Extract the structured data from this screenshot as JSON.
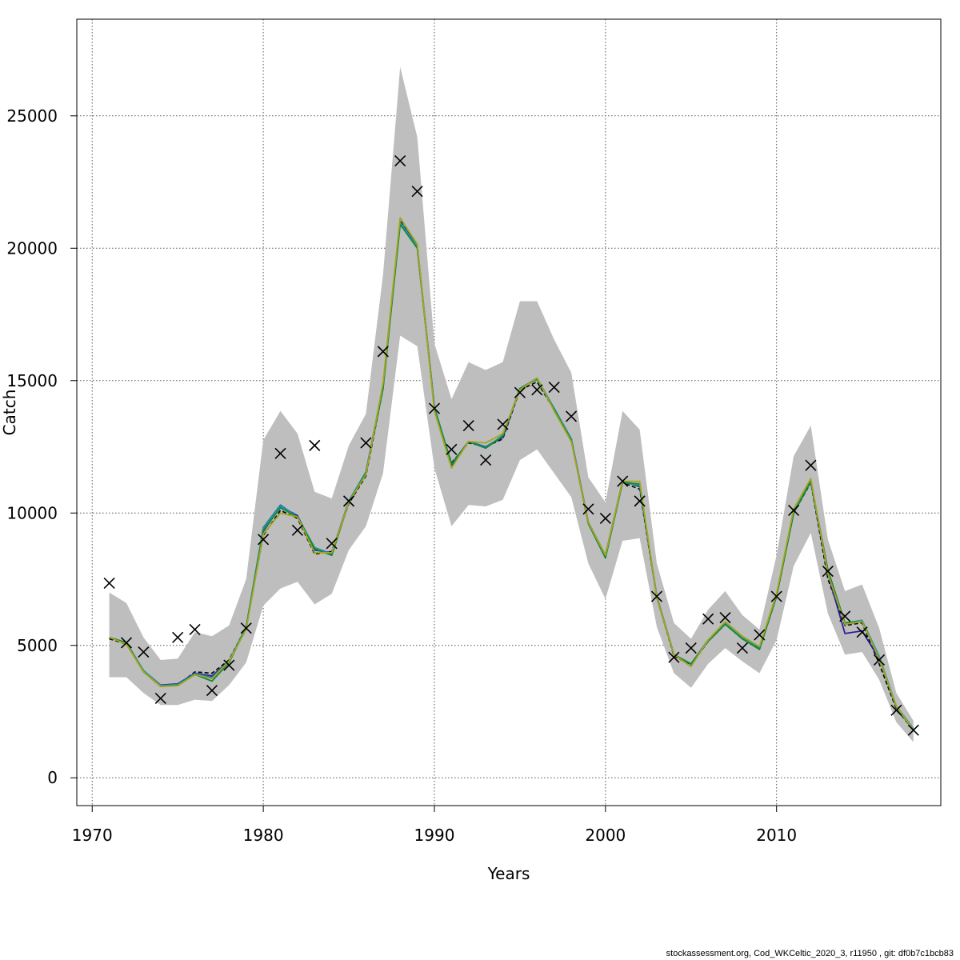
{
  "chart_data": {
    "type": "line",
    "title": "",
    "xlabel": "Years",
    "ylabel": "Catch",
    "xlim": [
      1969.1,
      2019.6
    ],
    "ylim": [
      -1050,
      28650
    ],
    "x_ticks": [
      1970,
      1980,
      1990,
      2000,
      2010
    ],
    "y_ticks": [
      0,
      5000,
      10000,
      15000,
      20000,
      25000
    ],
    "grid": true,
    "band_color": "#bebebe",
    "years": [
      1971,
      1972,
      1973,
      1974,
      1975,
      1976,
      1977,
      1978,
      1979,
      1980,
      1981,
      1982,
      1983,
      1984,
      1985,
      1986,
      1987,
      1988,
      1989,
      1990,
      1991,
      1992,
      1993,
      1994,
      1995,
      1996,
      1997,
      1998,
      1999,
      2000,
      2001,
      2002,
      2003,
      2004,
      2005,
      2006,
      2007,
      2008,
      2009,
      2010,
      2011,
      2012,
      2013,
      2014,
      2015,
      2016,
      2017,
      2018
    ],
    "band_lower": [
      3800,
      3800,
      3200,
      2750,
      2750,
      2950,
      2900,
      3500,
      4350,
      6500,
      7150,
      7400,
      6550,
      6950,
      8600,
      9500,
      11500,
      16700,
      16300,
      11700,
      9500,
      10300,
      10250,
      10500,
      12000,
      12400,
      11500,
      10600,
      8100,
      6750,
      8950,
      9050,
      5700,
      3950,
      3400,
      4300,
      4900,
      4400,
      3950,
      5200,
      8000,
      9250,
      6200,
      4650,
      4750,
      3700,
      2100,
      1350
    ],
    "band_upper": [
      7000,
      6600,
      5300,
      4450,
      4500,
      5500,
      5350,
      5750,
      7500,
      12750,
      13850,
      13000,
      10800,
      10550,
      12550,
      13750,
      19000,
      26850,
      24200,
      16400,
      14300,
      15700,
      15400,
      15700,
      18000,
      18000,
      16550,
      15300,
      11350,
      10400,
      13850,
      13150,
      8100,
      5850,
      5250,
      6350,
      7050,
      6150,
      5600,
      8400,
      12150,
      13300,
      9000,
      7050,
      7300,
      5650,
      3200,
      2150
    ],
    "observed": [
      7350,
      5100,
      4750,
      3000,
      5300,
      5600,
      3300,
      4250,
      5650,
      9000,
      12250,
      9350,
      12550,
      8850,
      10450,
      12650,
      16100,
      23300,
      22150,
      13950,
      12400,
      13300,
      12000,
      13350,
      14550,
      14650,
      14750,
      13650,
      10150,
      9800,
      11200,
      10450,
      6850,
      4550,
      4900,
      6000,
      6050,
      4900,
      5400,
      6850,
      10100,
      11800,
      7800,
      6100,
      5500,
      4450,
      2550,
      1800
    ],
    "series": [
      {
        "name": "",
        "color": "#000000",
        "dashed": true,
        "values": [
          5250,
          5050,
          4000,
          3450,
          3500,
          4000,
          3950,
          4450,
          5700,
          9150,
          10100,
          9800,
          8450,
          8550,
          10350,
          11400,
          14700,
          21050,
          20050,
          13900,
          11900,
          12650,
          12500,
          12800,
          14650,
          14950,
          13900,
          12750,
          9600,
          8350,
          11150,
          10900,
          6800,
          4600,
          4250,
          5150,
          5800,
          5250,
          4850,
          6850,
          10000,
          11150,
          7500,
          5750,
          5850,
          4300,
          2600,
          1800
        ]
      },
      {
        "name": "",
        "color": "#2a1f9e",
        "dashed": false,
        "values": [
          5300,
          5100,
          4050,
          3500,
          3550,
          3950,
          3850,
          4400,
          5650,
          9300,
          10250,
          9900,
          8600,
          8500,
          10450,
          11550,
          14800,
          21000,
          20100,
          14000,
          11800,
          12700,
          12500,
          12850,
          14700,
          15050,
          13950,
          12800,
          9650,
          8400,
          11200,
          11000,
          6850,
          4650,
          4300,
          5200,
          5850,
          5250,
          4900,
          6900,
          10000,
          11200,
          7700,
          5450,
          5550,
          4500,
          2700,
          1850
        ]
      },
      {
        "name": "",
        "color": "#1f6bb5",
        "dashed": false,
        "values": [
          5300,
          5100,
          4050,
          3480,
          3530,
          3950,
          3800,
          4400,
          5700,
          9450,
          10300,
          9850,
          8700,
          8450,
          10450,
          11550,
          14800,
          21000,
          20050,
          14000,
          11850,
          12700,
          12500,
          12900,
          14700,
          15050,
          13950,
          12800,
          9650,
          8400,
          11200,
          11050,
          6850,
          4650,
          4300,
          5200,
          5850,
          5300,
          4900,
          6900,
          10050,
          11200,
          7800,
          5800,
          5900,
          4550,
          2700,
          1850
        ]
      },
      {
        "name": "",
        "color": "#2e9e9a",
        "dashed": false,
        "values": [
          5300,
          5100,
          4050,
          3480,
          3520,
          3900,
          3750,
          4400,
          5700,
          9400,
          10250,
          9850,
          8700,
          8400,
          10450,
          11550,
          14800,
          20950,
          20050,
          14000,
          11850,
          12700,
          12450,
          12950,
          14700,
          15100,
          13950,
          12800,
          9600,
          8350,
          11150,
          11050,
          6850,
          4650,
          4300,
          5200,
          5850,
          5300,
          4850,
          6900,
          10050,
          11200,
          7800,
          5850,
          5950,
          4600,
          2700,
          1850
        ]
      },
      {
        "name": "",
        "color": "#0f8a3a",
        "dashed": false,
        "values": [
          5300,
          5100,
          4000,
          3450,
          3500,
          3900,
          3650,
          4350,
          5650,
          9350,
          10200,
          9850,
          8650,
          8400,
          10400,
          11500,
          14700,
          20900,
          20000,
          13950,
          11850,
          12700,
          12450,
          12900,
          14700,
          15050,
          13900,
          12750,
          9600,
          8300,
          11150,
          11100,
          6800,
          4650,
          4300,
          5150,
          5800,
          5250,
          4850,
          6850,
          10000,
          11200,
          7850,
          5850,
          5900,
          4500,
          2650,
          1800
        ]
      },
      {
        "name": "",
        "color": "#a6a51d",
        "dashed": false,
        "values": [
          5300,
          5050,
          4000,
          3450,
          3480,
          3900,
          3750,
          4400,
          5600,
          9200,
          10000,
          9850,
          8500,
          8500,
          10400,
          11450,
          14900,
          21150,
          20150,
          13850,
          11700,
          12700,
          12650,
          13000,
          14650,
          15100,
          13850,
          12700,
          9650,
          8400,
          11200,
          11200,
          6800,
          4650,
          4200,
          5200,
          5900,
          5350,
          4950,
          6950,
          10150,
          11300,
          7700,
          5800,
          5900,
          4500,
          2700,
          1800
        ]
      }
    ]
  },
  "footer": {
    "text": "stockassessment.org, Cod_WKCeltic_2020_3, r11950 , git: df0b7c1bcb83"
  }
}
